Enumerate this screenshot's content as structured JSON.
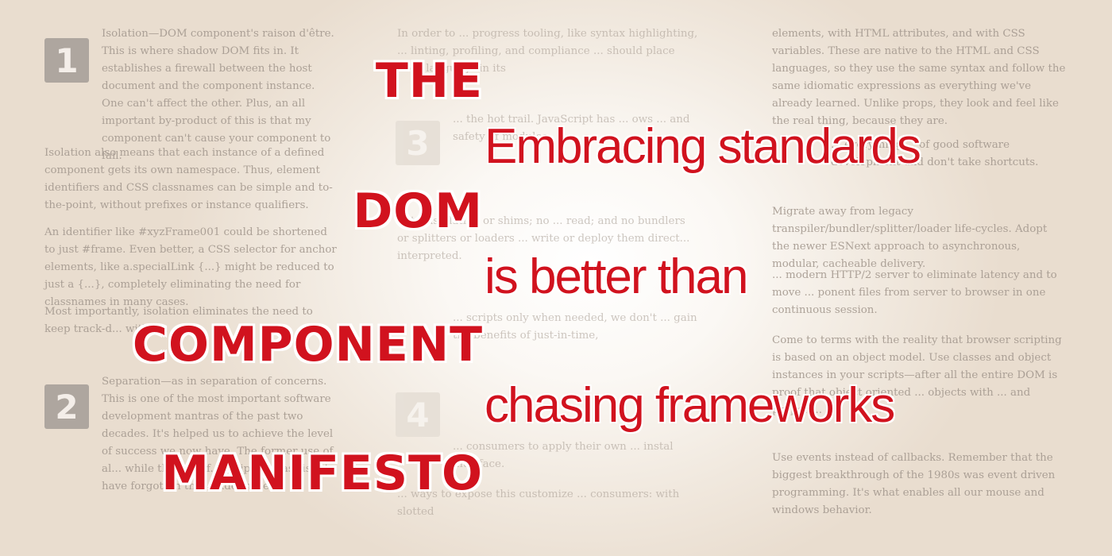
{
  "headline": {
    "lines": [
      "THE",
      "DOM",
      "COMPONENT",
      "MANIFESTO"
    ]
  },
  "tagline": {
    "lines": [
      "Embracing standards",
      "is better than",
      "chasing frameworks"
    ]
  },
  "colors": {
    "accent": "#d1121e",
    "body_text": "#a59a90",
    "number_box": "#a49d97"
  },
  "background_article": {
    "numbers": [
      "1",
      "2",
      "3",
      "4"
    ],
    "col1": [
      "Isolation—DOM component's raison d'être. This is where shadow DOM fits in. It establishes a firewall between the host document and the component instance. One can't affect the other. Plus, an all important by-product of this is that my component can't cause your component to fail.",
      "Isolation also means that each instance of a defined component gets its own namespace. Thus, element identifiers and CSS classnames can be simple and to-the-point, without prefixes or instance qualifiers.",
      "An identifier like #xyzFrame001 could be shortened to just #frame. Even better, a CSS selector for anchor elements, like a.specialLink {...} might be reduced to just a {...}, completely eliminating the need for classnames in many cases.",
      "Most importantly, isolation eliminates the need to keep track-d... with s...",
      "Separation—as in separation of concerns. This is one of the most important software development mantras of the past two decades. It's helped us to achieve the level of success we now have. The former use of al... while the use of... scripting has ris... to have forgotten this golden rule."
    ],
    "col2": [
      "In order to ... progress tooling, like syntax highlighting, ... linting, profiling, and compliance ... should place each language in its",
      "... the hot trail. JavaScript has ... ows ... and safety of modules.",
      "... transpilation or shims; no ... read; and no bundlers or splitters or loaders ... write or deploy them direct... interpreted.",
      "... scripts only when needed, we don't ... gain the benefits of just-in-time,",
      "... consumers to apply their own ... instal interface.",
      "... ways to expose this customize ... consumers: with slotted"
    ],
    "col3": [
      "elements, with HTML attributes, and with CSS variables. These are native to the HTML and CSS languages, so they use the same syntax and follow the same idiomatic expressions as everything we've already learned. Unlike props, they look and feel like the real thing, because they are.",
      "... everything ... of good software development and don't take shortcuts.",
      "Migrate away from legacy transpiler/bundler/splitter/loader life-cycles. Adopt the newer ESNext approach to asynchronous, modular, cacheable delivery.",
      "... modern HTTP/2 server to eliminate latency and to move ... ponent files from server to browser in one continuous session.",
      "Come to terms with the reality that browser scripting is based on an object model. Use classes and object instances in your scripts—after all the entire DOM is proof that object oriented ... objects with ... and proper ...",
      "Use events instead of callbacks. Remember that the biggest breakthrough of the 1980s was event driven programming. It's what enables all our mouse and windows behavior."
    ]
  }
}
